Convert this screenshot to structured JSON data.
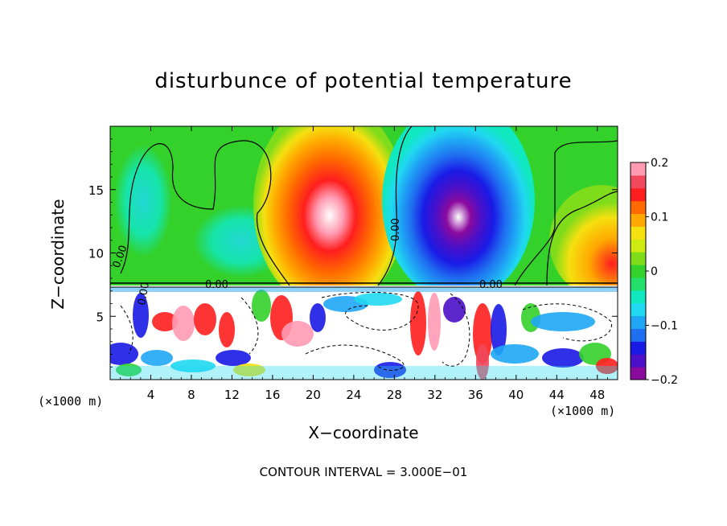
{
  "chart_data": {
    "type": "heatmap",
    "title": "disturbunce of potential temperature",
    "xlabel": "X−coordinate",
    "ylabel": "Z−coordinate",
    "x_unit": "(×1000 m)",
    "xlim": [
      0,
      50
    ],
    "ylim": [
      0,
      20
    ],
    "x_ticks": [
      4,
      8,
      12,
      16,
      20,
      24,
      28,
      32,
      36,
      40,
      44,
      48
    ],
    "x_tick_labels": [
      "4",
      "8",
      "12",
      "16",
      "20",
      "24",
      "28",
      "32",
      "36",
      "40",
      "44",
      "48"
    ],
    "y_ticks": [
      5,
      10,
      15
    ],
    "y_tick_labels": [
      "5",
      "10",
      "15"
    ],
    "colorbar": {
      "range": [
        -0.2,
        0.2
      ],
      "tick_values": [
        0.2,
        0.1,
        0,
        -0.1,
        -0.2
      ],
      "tick_labels": [
        "0.2",
        "0.1",
        "0",
        "−0.1",
        "−0.2"
      ],
      "colors": [
        "#8b0a9e",
        "#4b10c8",
        "#1a1ae6",
        "#1f6ff0",
        "#1fa6f5",
        "#20d8f0",
        "#10e8c0",
        "#22e06a",
        "#33d12a",
        "#7fdc1a",
        "#cfea10",
        "#f5e010",
        "#ffa800",
        "#ff6a00",
        "#ff1e1e",
        "#f0485c",
        "#ff9ab2"
      ]
    },
    "contour_labels": [
      "0.00",
      "0.00",
      "0.00",
      "0.00",
      "0.00"
    ],
    "footer": "CONTOUR INTERVAL = 3.000E−01",
    "grid": false
  }
}
